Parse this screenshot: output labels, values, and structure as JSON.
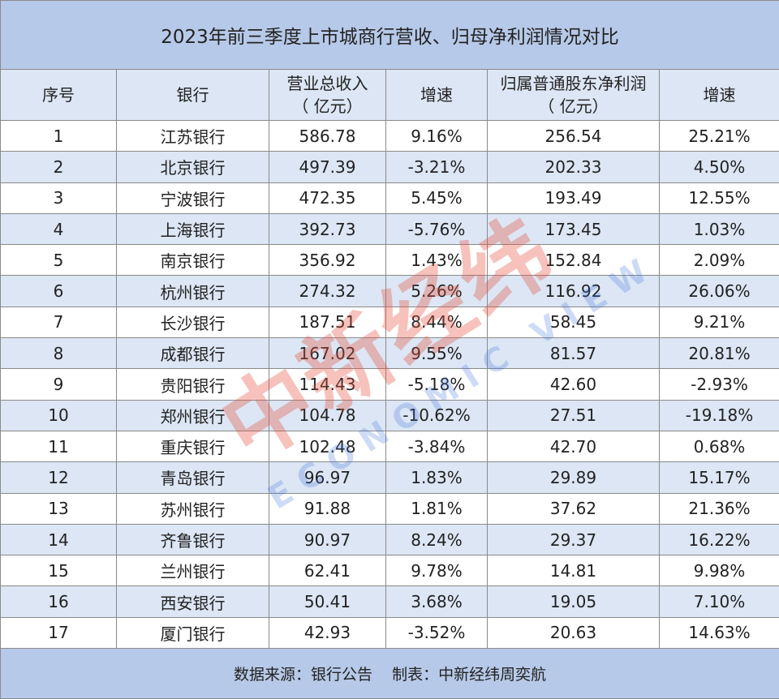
{
  "title": "2023年前三季度上市城商行营收、归母净利润情况对比",
  "table": {
    "header": [
      [
        "序号"
      ],
      [
        "银行"
      ],
      [
        "营业总收入",
        "（ 亿元）"
      ],
      [
        "增速"
      ],
      [
        "归属普通股东净利润",
        "（ 亿元）"
      ],
      [
        "增速"
      ]
    ],
    "rows": [
      [
        "1",
        "江苏银行",
        "586.78",
        "9.16%",
        "256.54",
        "25.21%"
      ],
      [
        "2",
        "北京银行",
        "497.39",
        "-3.21%",
        "202.33",
        "4.50%"
      ],
      [
        "3",
        "宁波银行",
        "472.35",
        "5.45%",
        "193.49",
        "12.55%"
      ],
      [
        "4",
        "上海银行",
        "392.73",
        "-5.76%",
        "173.45",
        "1.03%"
      ],
      [
        "5",
        "南京银行",
        "356.92",
        "1.43%",
        "152.84",
        "2.09%"
      ],
      [
        "6",
        "杭州银行",
        "274.32",
        "5.26%",
        "116.92",
        "26.06%"
      ],
      [
        "7",
        "长沙银行",
        "187.51",
        "8.44%",
        "58.45",
        "9.21%"
      ],
      [
        "8",
        "成都银行",
        "167.02",
        "9.55%",
        "81.57",
        "20.81%"
      ],
      [
        "9",
        "贵阳银行",
        "114.43",
        "-5.18%",
        "42.60",
        "-2.93%"
      ],
      [
        "10",
        "郑州银行",
        "104.78",
        "-10.62%",
        "27.51",
        "-19.18%"
      ],
      [
        "11",
        "重庆银行",
        "102.48",
        "-3.84%",
        "42.70",
        "0.68%"
      ],
      [
        "12",
        "青岛银行",
        "96.97",
        "1.83%",
        "29.89",
        "15.17%"
      ],
      [
        "13",
        "苏州银行",
        "91.88",
        "1.81%",
        "37.62",
        "21.36%"
      ],
      [
        "14",
        "齐鲁银行",
        "90.97",
        "8.24%",
        "29.37",
        "16.22%"
      ],
      [
        "15",
        "兰州银行",
        "62.41",
        "9.78%",
        "14.81",
        "9.98%"
      ],
      [
        "16",
        "西安银行",
        "50.41",
        "3.68%",
        "19.05",
        "7.10%"
      ],
      [
        "17",
        "厦门银行",
        "42.93",
        "-3.52%",
        "20.63",
        "14.63%"
      ]
    ]
  },
  "footer": "数据来源：银行公告    制表：中新经纬周奕航",
  "watermark": {
    "brand": "中新经纬",
    "sub": "ECONOMIC VIEW"
  }
}
